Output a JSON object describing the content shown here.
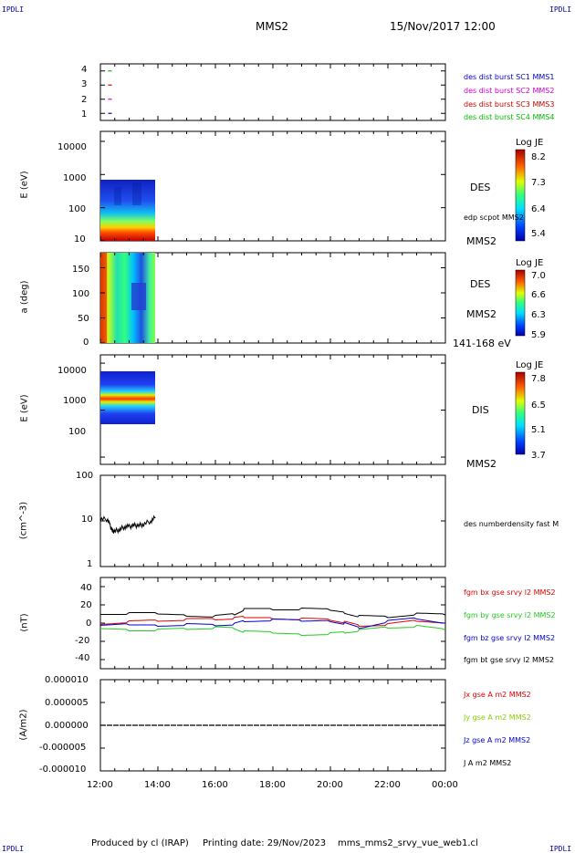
{
  "corner_label": "IPDLI",
  "header": {
    "spacecraft": "MMS2",
    "datetime": "15/Nov/2017 12:00"
  },
  "footer": {
    "produced_by": "Produced by cl (IRAP)",
    "printing_date": "Printing date: 29/Nov/2023",
    "filename": "mms_mms2_srvy_vue_web1.cl"
  },
  "x_axis": {
    "tick_labels": [
      "12:00",
      "14:00",
      "16:00",
      "18:00",
      "20:00",
      "22:00",
      "00:00"
    ]
  },
  "colors": {
    "mms1": "#0000cc",
    "mms2": "#cc00cc",
    "mms3": "#cc0000",
    "mms4": "#00bb00",
    "bx": "#dd0000",
    "by": "#22cc22",
    "bz": "#0000cc",
    "bt": "#000000",
    "jy": "#88cc00"
  },
  "panels": {
    "burst": {
      "y_ticks": [
        "4",
        "3",
        "2",
        "1"
      ],
      "legend": [
        "des dist burst SC1 MMS1",
        "des dist burst SC2 MMS2",
        "des dist burst SC3 MMS3",
        "des dist burst SC4 MMS4"
      ]
    },
    "des_energy": {
      "ylabel": "E (eV)",
      "y_ticks": [
        "10000",
        "1000",
        "100",
        "10"
      ],
      "instrument": "DES",
      "overlay": "edp scpot MMS2",
      "spacecraft": "MMS2",
      "colorbar": {
        "title": "Log JE",
        "ticks": [
          "8.2",
          "7.3",
          "6.4",
          "5.4"
        ]
      }
    },
    "des_pitch": {
      "ylabel": "a (deg)",
      "y_ticks": [
        "150",
        "100",
        "50",
        "0"
      ],
      "instrument": "DES",
      "spacecraft": "MMS2",
      "energy_range": "141-168 eV",
      "colorbar": {
        "title": "Log JE",
        "ticks": [
          "7.0",
          "6.6",
          "6.3",
          "5.9"
        ]
      }
    },
    "dis_energy": {
      "ylabel": "E (eV)",
      "y_ticks": [
        "10000",
        "1000",
        "100"
      ],
      "instrument": "DIS",
      "spacecraft": "MMS2",
      "colorbar": {
        "title": "Log JE",
        "ticks": [
          "7.8",
          "6.5",
          "5.1",
          "3.7"
        ]
      }
    },
    "density": {
      "ylabel": "(cm^-3)",
      "y_ticks": [
        "100",
        "10",
        "1"
      ],
      "legend": "des numberdensity fast M"
    },
    "bfield": {
      "ylabel": "(nT)",
      "y_ticks": [
        "40",
        "20",
        "0",
        "-20",
        "-40"
      ],
      "legend": [
        "fgm bx gse srvy l2 MMS2",
        "fgm by gse srvy l2 MMS2",
        "fgm bz gse srvy l2 MMS2",
        "fgm bt gse srvy l2 MMS2"
      ]
    },
    "current": {
      "ylabel": "(A/m2)",
      "y_ticks": [
        "0.000010",
        "0.000005",
        "0.000000",
        "-0.000005",
        "-0.000010"
      ],
      "legend": [
        "Jx gse A m2 MMS2",
        "Jy gse A m2 MMS2",
        "Jz gse A m2 MMS2",
        "J A m2 MMS2"
      ]
    }
  },
  "chart_data": [
    {
      "type": "scatter",
      "title": "",
      "ylabel": "",
      "y_categories": [
        "1",
        "2",
        "3",
        "4"
      ],
      "series": [
        {
          "name": "des dist burst SC1 MMS1",
          "x": [
            "12:20"
          ],
          "y": [
            1
          ]
        },
        {
          "name": "des dist burst SC2 MMS2",
          "x": [
            "12:20"
          ],
          "y": [
            2
          ]
        },
        {
          "name": "des dist burst SC3 MMS3",
          "x": [
            "12:20"
          ],
          "y": [
            3
          ]
        },
        {
          "name": "des dist burst SC4 MMS4",
          "x": [
            "12:20"
          ],
          "y": [
            4
          ]
        }
      ]
    },
    {
      "type": "heatmap",
      "ylabel": "E (eV)",
      "yscale": "log",
      "ylim": [
        10,
        20000
      ],
      "x_range": [
        "12:00",
        "13:55"
      ],
      "y_range": [
        10,
        1000
      ],
      "colorbar_label": "Log JE",
      "colorbar_range": [
        5.4,
        8.2
      ]
    },
    {
      "type": "heatmap",
      "ylabel": "a (deg)",
      "ylim": [
        0,
        180
      ],
      "x_range": [
        "12:00",
        "13:55"
      ],
      "y_range": [
        0,
        180
      ],
      "colorbar_label": "Log JE",
      "colorbar_range": [
        5.9,
        7.0
      ]
    },
    {
      "type": "heatmap",
      "ylabel": "E (eV)",
      "yscale": "log",
      "ylim": [
        70,
        15000
      ],
      "x_range": [
        "12:00",
        "13:55"
      ],
      "y_range": [
        180,
        10000
      ],
      "colorbar_label": "Log JE",
      "colorbar_range": [
        3.7,
        7.8
      ]
    },
    {
      "type": "line",
      "ylabel": "(cm^-3)",
      "yscale": "log",
      "ylim": [
        1,
        100
      ],
      "series": [
        {
          "name": "des numberdensity fast M",
          "x": [
            "12:00",
            "12:15",
            "12:20",
            "12:25",
            "12:30",
            "12:40",
            "12:50",
            "13:00",
            "13:10",
            "13:20",
            "13:30",
            "13:45",
            "13:55"
          ],
          "y": [
            11,
            11,
            8,
            6,
            6,
            6.5,
            7.5,
            7.5,
            8,
            8,
            8.5,
            10,
            12
          ]
        }
      ]
    },
    {
      "type": "line",
      "ylabel": "(nT)",
      "ylim": [
        -50,
        50
      ],
      "categories": [
        "12:00",
        "13:00",
        "14:00",
        "15:00",
        "16:00",
        "16:40",
        "17:00",
        "18:00",
        "19:00",
        "20:00",
        "20:30",
        "21:00",
        "22:00",
        "23:00",
        "00:00"
      ],
      "series": [
        {
          "name": "fgm bx gse srvy l2 MMS2",
          "values": [
            0,
            2,
            3,
            4,
            4,
            5,
            6,
            6,
            5,
            4,
            1,
            -3,
            -2,
            2,
            0
          ]
        },
        {
          "name": "fgm by gse srvy l2 MMS2",
          "values": [
            -6,
            -7,
            -7,
            -6,
            -5,
            -6,
            -10,
            -11,
            -12,
            -11,
            -10,
            -8,
            -5,
            -4,
            -8
          ]
        },
        {
          "name": "fgm bz gse srvy l2 MMS2",
          "values": [
            -4,
            -2,
            -2,
            -1,
            -2,
            -1,
            2,
            3,
            2,
            3,
            0,
            -5,
            2,
            5,
            0
          ]
        },
        {
          "name": "fgm bt gse srvy l2 MMS2",
          "values": [
            10,
            10,
            10,
            9,
            8,
            10,
            15,
            15,
            15,
            14,
            12,
            8,
            7,
            10,
            9
          ]
        }
      ]
    },
    {
      "type": "line",
      "ylabel": "(A/m2)",
      "ylim": [
        -1e-05,
        1e-05
      ],
      "series": [
        {
          "name": "J A m2 MMS2",
          "x": [
            "12:00",
            "00:00"
          ],
          "y": [
            0.0,
            0.0
          ]
        }
      ]
    }
  ]
}
